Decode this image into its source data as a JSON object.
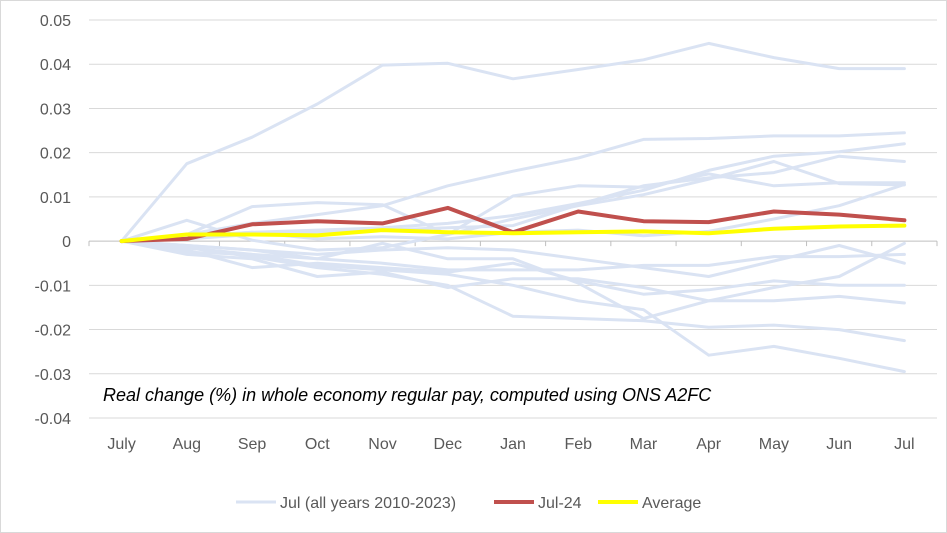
{
  "chart_data": {
    "type": "line",
    "title": "",
    "annotation": "Real change (%) in whole economy regular pay, computed using ONS A2FC",
    "xlabel": "",
    "ylabel": "",
    "categories": [
      "July",
      "Aug",
      "Sep",
      "Oct",
      "Nov",
      "Dec",
      "Jan",
      "Feb",
      "Mar",
      "Apr",
      "May",
      "Jun",
      "Jul"
    ],
    "ylim": [
      -0.04,
      0.05
    ],
    "yticks": [
      0.05,
      0.04,
      0.03,
      0.02,
      0.01,
      0,
      -0.01,
      -0.02,
      -0.03,
      -0.04
    ],
    "ytick_labels": [
      "0.05",
      "0.04",
      "0.03",
      "0.02",
      "0.01",
      "0",
      "-0.01",
      "-0.02",
      "-0.03",
      "-0.04"
    ],
    "grid": true,
    "legend_position": "bottom",
    "legend": [
      {
        "label": "Jul (all years 2010-2023)",
        "color": "#dae3f3"
      },
      {
        "label": "Jul-24",
        "color": "#c0504d"
      },
      {
        "label": "Average",
        "color": "#ffff00"
      }
    ],
    "series": [
      {
        "name": "Jul (all years 2010-2023)",
        "group": "background",
        "color": "#dae3f3",
        "values": [
          0,
          0.0175,
          0.0235,
          0.031,
          0.0398,
          0.0402,
          0.0367,
          0.0388,
          0.041,
          0.0447,
          0.0415,
          0.039,
          0.039
        ]
      },
      {
        "name": "Jul (all years 2010-2023)",
        "group": "background",
        "color": "#dae3f3",
        "values": [
          0,
          0.0015,
          0.004,
          0.006,
          0.008,
          0.0125,
          0.0158,
          0.0188,
          0.023,
          0.0232,
          0.0238,
          0.0238,
          0.0245
        ]
      },
      {
        "name": "Jul (all years 2010-2023)",
        "group": "background",
        "color": "#dae3f3",
        "values": [
          0,
          0.001,
          0.002,
          0.0025,
          0.003,
          0.004,
          0.0058,
          0.0085,
          0.0115,
          0.016,
          0.0192,
          0.0202,
          0.022
        ]
      },
      {
        "name": "Jul (all years 2010-2023)",
        "group": "background",
        "color": "#dae3f3",
        "values": [
          0,
          0.0005,
          0.0015,
          0.002,
          0.0025,
          0.003,
          0.0035,
          0.0082,
          0.0125,
          0.0143,
          0.0155,
          0.0192,
          0.018
        ]
      },
      {
        "name": "Jul (all years 2010-2023)",
        "group": "background",
        "color": "#dae3f3",
        "values": [
          0,
          0.0047,
          0.0002,
          -0.002,
          -0.0015,
          0.0015,
          0.0102,
          0.0125,
          0.0122,
          0.0152,
          0.0125,
          0.0132,
          0.0132
        ]
      },
      {
        "name": "Jul (all years 2010-2023)",
        "group": "background",
        "color": "#dae3f3",
        "values": [
          0,
          0.0015,
          0.0078,
          0.0087,
          0.0082,
          0.0015,
          0.005,
          0.008,
          0.0105,
          0.014,
          0.018,
          0.013,
          0.0127
        ]
      },
      {
        "name": "Jul (all years 2010-2023)",
        "group": "background",
        "color": "#dae3f3",
        "values": [
          0,
          0.001,
          0.002,
          0.0005,
          0.001,
          0.0005,
          0.002,
          0.0025,
          0.0012,
          0.0022,
          0.005,
          0.008,
          0.0128
        ]
      },
      {
        "name": "Jul (all years 2010-2023)",
        "group": "background",
        "color": "#dae3f3",
        "values": [
          0,
          -0.001,
          -0.002,
          -0.003,
          -0.002,
          -0.0015,
          -0.002,
          -0.004,
          -0.006,
          -0.008,
          -0.0045,
          -0.001,
          -0.005
        ]
      },
      {
        "name": "Jul (all years 2010-2023)",
        "group": "background",
        "color": "#dae3f3",
        "values": [
          0,
          -0.002,
          -0.006,
          -0.005,
          -0.006,
          -0.007,
          -0.005,
          -0.009,
          -0.012,
          -0.011,
          -0.009,
          -0.01,
          -0.01
        ]
      },
      {
        "name": "Jul (all years 2010-2023)",
        "group": "background",
        "color": "#dae3f3",
        "values": [
          0,
          -0.003,
          -0.004,
          -0.008,
          -0.007,
          -0.0105,
          -0.0085,
          -0.0085,
          -0.0105,
          -0.0135,
          -0.0135,
          -0.0125,
          -0.014
        ]
      },
      {
        "name": "Jul (all years 2010-2023)",
        "group": "background",
        "color": "#dae3f3",
        "values": [
          0,
          -0.0015,
          -0.0035,
          -0.006,
          -0.0075,
          -0.01,
          -0.017,
          -0.0175,
          -0.018,
          -0.0195,
          -0.019,
          -0.02,
          -0.0225
        ]
      },
      {
        "name": "Jul (all years 2010-2023)",
        "group": "background",
        "color": "#dae3f3",
        "values": [
          0,
          -0.001,
          -0.002,
          -0.004,
          -0.005,
          -0.0065,
          -0.0065,
          -0.0065,
          -0.0055,
          -0.0055,
          -0.0035,
          -0.0035,
          -0.003
        ]
      },
      {
        "name": "Jul (all years 2010-2023)",
        "group": "background",
        "color": "#dae3f3",
        "values": [
          0,
          -0.0025,
          -0.003,
          -0.0055,
          -0.0065,
          -0.0075,
          -0.01,
          -0.0135,
          -0.0155,
          -0.0258,
          -0.0238,
          -0.0265,
          -0.0295
        ]
      },
      {
        "name": "Jul (all years 2010-2023)",
        "group": "background",
        "color": "#dae3f3",
        "values": [
          0,
          -0.0015,
          -0.003,
          -0.004,
          -0.0005,
          -0.004,
          -0.004,
          -0.0095,
          -0.0175,
          -0.0135,
          -0.0105,
          -0.008,
          -0.0005
        ]
      },
      {
        "name": "Jul-24",
        "group": "highlight",
        "color": "#c0504d",
        "values": [
          0,
          0.0005,
          0.0038,
          0.0045,
          0.004,
          0.0075,
          0.002,
          0.0067,
          0.0045,
          0.0043,
          0.0067,
          0.006,
          0.0047
        ]
      },
      {
        "name": "Average",
        "group": "highlight",
        "color": "#ffff00",
        "values": [
          0,
          0.0015,
          0.0015,
          0.0013,
          0.0025,
          0.002,
          0.0018,
          0.002,
          0.0022,
          0.0018,
          0.0028,
          0.0033,
          0.0035
        ]
      }
    ]
  }
}
